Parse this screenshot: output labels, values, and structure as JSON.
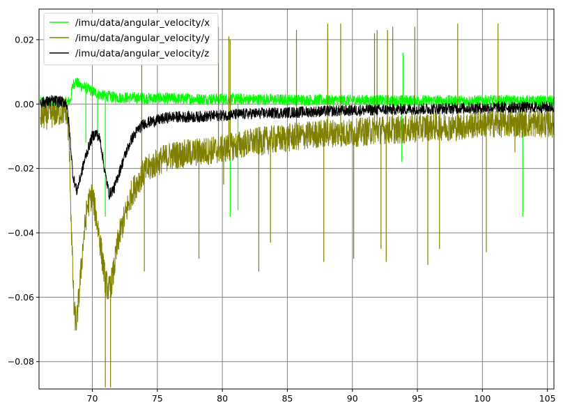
{
  "chart_data": {
    "type": "line",
    "title": "",
    "xlabel": "",
    "ylabel": "",
    "xlim": [
      65.9,
      105.5
    ],
    "ylim": [
      -0.0885,
      0.0295
    ],
    "grid": true,
    "legend_position": "upper-left",
    "x_ticks": [
      70,
      75,
      80,
      85,
      90,
      95,
      100,
      105
    ],
    "x_tick_labels": [
      "70",
      "75",
      "80",
      "85",
      "90",
      "95",
      "100",
      "105"
    ],
    "y_ticks": [
      0.02,
      0.0,
      -0.02,
      -0.04,
      -0.06,
      -0.08
    ],
    "y_tick_labels": [
      "0.02",
      "0.00",
      "−0.02",
      "−0.04",
      "−0.06",
      "−0.08"
    ],
    "series": [
      {
        "name": "/imu/data/angular_velocity/x",
        "color": "#00ff00",
        "x": [
          66,
          67,
          68,
          68.3,
          68.5,
          68.7,
          69,
          69.5,
          70,
          70.5,
          71,
          72,
          73,
          74,
          75,
          76,
          78,
          80,
          82,
          84,
          86,
          88,
          90,
          92,
          94,
          96,
          98,
          100,
          102,
          104,
          105.5
        ],
        "values": [
          0.0005,
          0.0005,
          0.0005,
          0.001,
          0.006,
          0.007,
          0.006,
          0.005,
          0.004,
          0.003,
          0.0025,
          0.002,
          0.002,
          0.0018,
          0.0018,
          0.0017,
          0.0016,
          0.0016,
          0.0015,
          0.0014,
          0.0013,
          0.0012,
          0.0012,
          0.0011,
          0.0011,
          0.001,
          0.001,
          0.001,
          0.001,
          0.0009,
          0.0009
        ],
        "noise": 0.0018,
        "spikes": [
          [
            69.5,
            -0.012
          ],
          [
            70.4,
            -0.01
          ],
          [
            71,
            -0.035
          ],
          [
            80.6,
            -0.035
          ],
          [
            81.2,
            -0.033
          ],
          [
            93.9,
            0.016
          ],
          [
            93.8,
            -0.018
          ],
          [
            103.1,
            -0.035
          ]
        ]
      },
      {
        "name": "/imu/data/angular_velocity/y",
        "color": "#808000",
        "x": [
          66,
          67,
          68,
          68.2,
          68.4,
          68.6,
          68.8,
          69,
          69.3,
          69.6,
          70,
          70.5,
          71,
          71.3,
          71.6,
          72,
          72.5,
          73,
          73.5,
          74,
          75,
          76,
          78,
          80,
          82,
          84,
          86,
          88,
          90,
          92,
          94,
          96,
          98,
          100,
          102,
          104,
          105.5
        ],
        "values": [
          -0.004,
          -0.003,
          -0.002,
          -0.01,
          -0.04,
          -0.065,
          -0.068,
          -0.058,
          -0.043,
          -0.032,
          -0.028,
          -0.04,
          -0.055,
          -0.058,
          -0.053,
          -0.042,
          -0.035,
          -0.028,
          -0.024,
          -0.021,
          -0.018,
          -0.016,
          -0.015,
          -0.014,
          -0.012,
          -0.011,
          -0.01,
          -0.009,
          -0.009,
          -0.008,
          -0.008,
          -0.007,
          -0.007,
          -0.006,
          -0.006,
          -0.006,
          -0.006
        ],
        "noise": 0.0045,
        "spikes": [
          [
            71,
            -0.088
          ],
          [
            71.4,
            -0.088
          ],
          [
            73.8,
            0.015
          ],
          [
            74,
            -0.052
          ],
          [
            78.2,
            -0.048
          ],
          [
            79.7,
            0.024
          ],
          [
            80.1,
            -0.025
          ],
          [
            80.5,
            0.021
          ],
          [
            80.6,
            0.02
          ],
          [
            82.8,
            -0.052
          ],
          [
            83.7,
            -0.043
          ],
          [
            85.7,
            0.023
          ],
          [
            87.8,
            -0.049
          ],
          [
            88.1,
            0.025
          ],
          [
            89.1,
            0.025
          ],
          [
            90.1,
            -0.048
          ],
          [
            91.7,
            0.022
          ],
          [
            91.9,
            0.023
          ],
          [
            92.2,
            -0.045
          ],
          [
            92.6,
            -0.049
          ],
          [
            92.7,
            0.023
          ],
          [
            93.1,
            0.024
          ],
          [
            95.8,
            -0.05
          ],
          [
            94.8,
            0.024
          ],
          [
            96.7,
            -0.045
          ],
          [
            98.1,
            0.025
          ],
          [
            100.3,
            -0.046
          ],
          [
            101.2,
            0.025
          ],
          [
            102.5,
            -0.015
          ]
        ]
      },
      {
        "name": "/imu/data/angular_velocity/z",
        "color": "#000000",
        "x": [
          66,
          67,
          68,
          68.2,
          68.5,
          68.8,
          69,
          69.5,
          70,
          70.3,
          70.6,
          71,
          71.3,
          71.7,
          72,
          72.5,
          73,
          73.5,
          74,
          75,
          76,
          78,
          80,
          82,
          84,
          86,
          88,
          90,
          92,
          94,
          96,
          98,
          100,
          102,
          104,
          105.5
        ],
        "values": [
          0.0005,
          0.001,
          0.0005,
          -0.006,
          -0.022,
          -0.027,
          -0.024,
          -0.016,
          -0.01,
          -0.009,
          -0.011,
          -0.022,
          -0.028,
          -0.026,
          -0.022,
          -0.016,
          -0.011,
          -0.008,
          -0.006,
          -0.005,
          -0.004,
          -0.004,
          -0.0035,
          -0.003,
          -0.0028,
          -0.0025,
          -0.0022,
          -0.002,
          -0.0018,
          -0.0016,
          -0.0015,
          -0.0013,
          -0.0012,
          -0.001,
          -0.001,
          -0.0009
        ],
        "noise": 0.0018,
        "spikes": []
      }
    ]
  }
}
